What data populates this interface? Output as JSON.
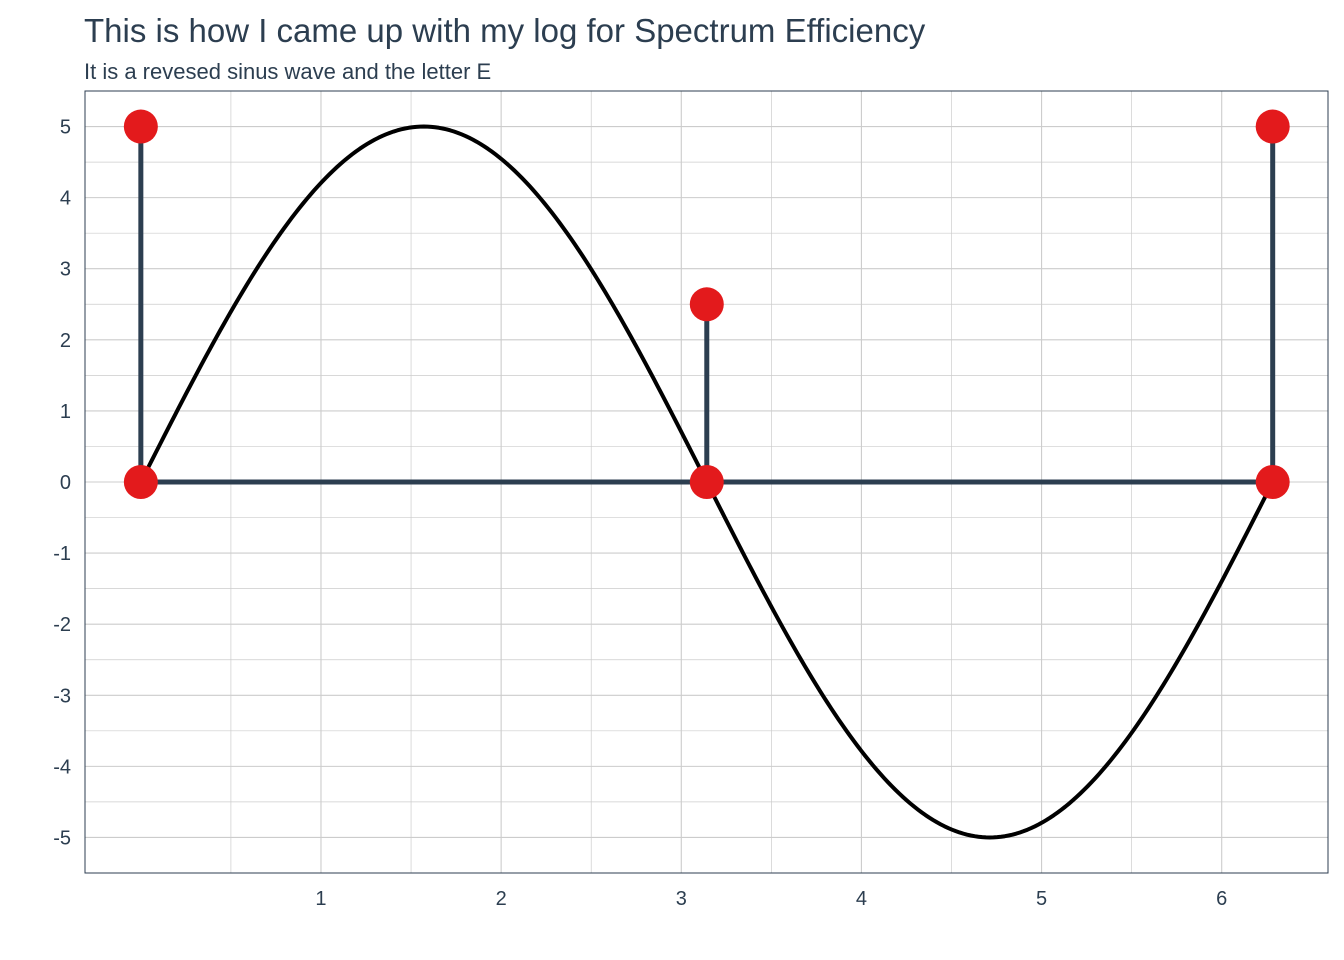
{
  "chart_data": {
    "type": "line",
    "title": "This is how I came up with my log for Spectrum Efficiency",
    "subtitle": "It is a revesed sinus wave and the letter E",
    "xlabel": "",
    "ylabel": "",
    "xlim": [
      -0.31,
      6.59
    ],
    "ylim": [
      -5.5,
      5.5
    ],
    "x_ticks": [
      1,
      2,
      3,
      4,
      5,
      6
    ],
    "y_ticks": [
      5,
      4,
      3,
      2,
      1,
      0,
      -1,
      -2,
      -3,
      -4,
      -5
    ],
    "grid": true,
    "legend": "none",
    "series": [
      {
        "kind": "curve",
        "function": "5*sin(x)",
        "x_range": [
          0,
          6.283
        ],
        "color": "#000000"
      }
    ],
    "segments": [
      {
        "x": [
          0,
          0
        ],
        "y": [
          0,
          5
        ]
      },
      {
        "x": [
          0,
          6.283
        ],
        "y": [
          0,
          0
        ]
      },
      {
        "x": [
          3.1416,
          3.1416
        ],
        "y": [
          0,
          2.5
        ]
      },
      {
        "x": [
          6.283,
          6.283
        ],
        "y": [
          0,
          5
        ]
      }
    ],
    "segment_color": "#2c3e50",
    "points": [
      {
        "x": 0,
        "y": 5
      },
      {
        "x": 0,
        "y": 0
      },
      {
        "x": 3.1416,
        "y": 2.5
      },
      {
        "x": 3.1416,
        "y": 0
      },
      {
        "x": 6.283,
        "y": 5
      },
      {
        "x": 6.283,
        "y": 0
      }
    ],
    "point_color": "#e31a1c",
    "grid_color": "#cccccc",
    "axis_color": "#2c3e50"
  }
}
